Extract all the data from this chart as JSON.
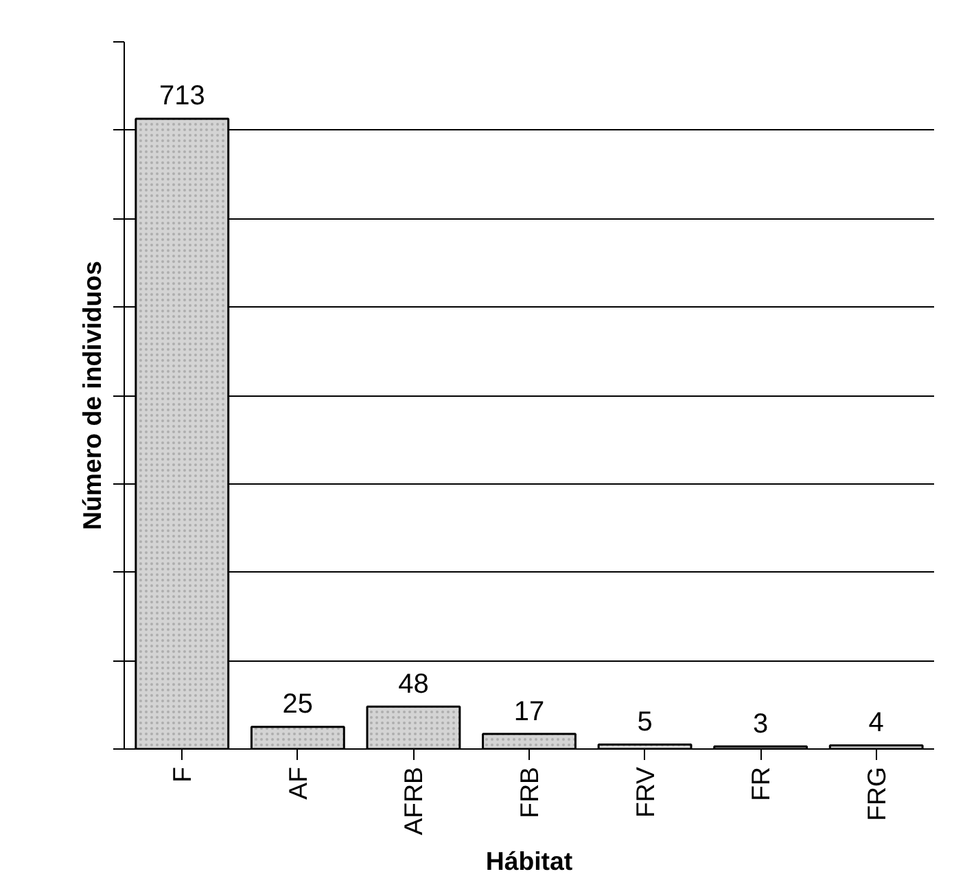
{
  "chart_data": {
    "type": "bar",
    "xlabel": "Hábitat",
    "ylabel": "Número de individuos",
    "categories": [
      "F",
      "AF",
      "AFRB",
      "FRB",
      "FRV",
      "FR",
      "FRG"
    ],
    "values": [
      713,
      25,
      48,
      17,
      5,
      3,
      4
    ],
    "color": "#d4d4d4",
    "ylim": [
      0,
      800
    ],
    "yticks": [
      {
        "value": 0,
        "label": null
      },
      {
        "value": 100,
        "label": null
      },
      {
        "value": 200,
        "label": null
      },
      {
        "value": 300,
        "label": null
      },
      {
        "value": 400,
        "label": null
      },
      {
        "value": 500,
        "label": null
      },
      {
        "value": 600,
        "label": null
      },
      {
        "value": 700,
        "label": null
      },
      {
        "value": 800,
        "label": null
      }
    ],
    "tick_labels": "x",
    "grid": "y",
    "data_labels": true
  }
}
